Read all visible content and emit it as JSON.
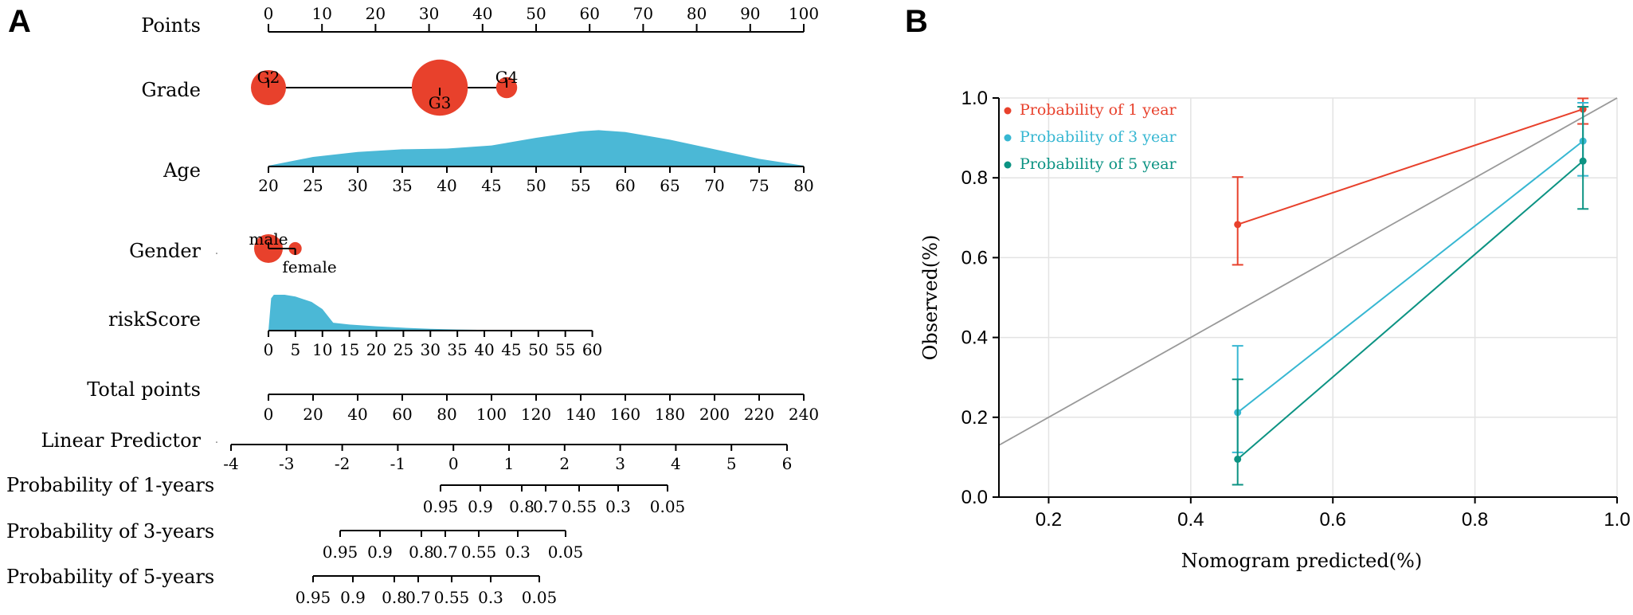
{
  "panels": {
    "a_label": "A",
    "b_label": "B"
  },
  "chart_data": [
    {
      "type": "nomogram",
      "title": "",
      "rows": [
        {
          "label": "Points",
          "kind": "axis",
          "min": 0,
          "max": 100,
          "ticks": [
            "0",
            "10",
            "20",
            "30",
            "40",
            "50",
            "60",
            "70",
            "80",
            "90",
            "100"
          ]
        },
        {
          "label": "Grade",
          "kind": "categorical",
          "categories": [
            {
              "name": "G2",
              "points": 0,
              "size": 1.0
            },
            {
              "name": "G3",
              "points": 32,
              "size": 1.6
            },
            {
              "name": "G4",
              "points": 44.5,
              "size": 0.6
            }
          ]
        },
        {
          "label": "Age",
          "kind": "continuous",
          "min": 20,
          "max": 80,
          "ticks": [
            "20",
            "25",
            "30",
            "35",
            "40",
            "45",
            "50",
            "55",
            "60",
            "65",
            "70",
            "75",
            "80"
          ],
          "density_x": [
            20,
            25,
            30,
            35,
            40,
            45,
            50,
            55,
            57,
            60,
            65,
            70,
            75,
            80
          ],
          "density_y": [
            0.02,
            0.25,
            0.38,
            0.45,
            0.47,
            0.55,
            0.75,
            0.92,
            0.95,
            0.9,
            0.7,
            0.45,
            0.2,
            0.02
          ]
        },
        {
          "label": "Gender",
          "kind": "categorical",
          "categories": [
            {
              "name": "male",
              "points": 0,
              "size": 1.0
            },
            {
              "name": "female",
              "points": 5,
              "size": 0.45
            }
          ]
        },
        {
          "label": "riskScore",
          "kind": "continuous",
          "min": 0,
          "max": 60,
          "ticks": [
            "0",
            "5",
            "10",
            "15",
            "20",
            "25",
            "30",
            "35",
            "40",
            "45",
            "50",
            "55",
            "60"
          ],
          "density_x": [
            0,
            0.5,
            1,
            3,
            5,
            8,
            10,
            12,
            15,
            20,
            25,
            30,
            35,
            40,
            45,
            50,
            55,
            60
          ],
          "density_y": [
            0,
            0.9,
            1.0,
            1.0,
            0.95,
            0.8,
            0.6,
            0.22,
            0.17,
            0.12,
            0.08,
            0.05,
            0.03,
            0.02,
            0.015,
            0.01,
            0.005,
            0
          ]
        },
        {
          "label": "Total points",
          "kind": "axis",
          "min": 0,
          "max": 240,
          "ticks": [
            "0",
            "20",
            "40",
            "60",
            "80",
            "100",
            "120",
            "140",
            "160",
            "180",
            "200",
            "220",
            "240"
          ]
        },
        {
          "label": "Linear Predictor",
          "kind": "axis",
          "min": -4,
          "max": 6,
          "ticks": [
            "-4",
            "-3",
            "-2",
            "-1",
            "0",
            "1",
            "2",
            "3",
            "4",
            "5",
            "6"
          ]
        },
        {
          "label": "Probability of 1-years",
          "kind": "probability",
          "ticks": [
            "0.95",
            "0.9",
            "0.8",
            "0.7",
            "0.55",
            "0.3",
            "0.05"
          ]
        },
        {
          "label": "Probability of 3-years",
          "kind": "probability",
          "ticks": [
            "0.95",
            "0.9",
            "0.8",
            "0.7",
            "0.55",
            "0.3",
            "0.05"
          ]
        },
        {
          "label": "Probability of 5-years",
          "kind": "probability",
          "ticks": [
            "0.95",
            "0.9",
            "0.8",
            "0.7",
            "0.55",
            "0.3",
            "0.05"
          ]
        }
      ]
    },
    {
      "type": "line",
      "title": "",
      "xlabel": "Nomogram predicted(%)",
      "ylabel": "Observed(%)",
      "xlim": [
        0.13,
        1.0
      ],
      "ylim": [
        0.0,
        1.0
      ],
      "xticks": [
        0.2,
        0.4,
        0.6,
        0.8,
        1.0
      ],
      "yticks": [
        0.0,
        0.2,
        0.4,
        0.6,
        0.8,
        1.0
      ],
      "grid": true,
      "legend": "top-left",
      "diagonal": true,
      "series": [
        {
          "name": "Probability of 1 year",
          "color": "#e8412c",
          "x": [
            0.466,
            0.952
          ],
          "y": [
            0.683,
            0.972
          ],
          "lower": [
            0.582,
            0.935
          ],
          "upper": [
            0.802,
            0.999
          ]
        },
        {
          "name": "Probability of 3 year",
          "color": "#37b7d2",
          "x": [
            0.466,
            0.952
          ],
          "y": [
            0.212,
            0.892
          ],
          "lower": [
            0.112,
            0.805
          ],
          "upper": [
            0.379,
            0.988
          ]
        },
        {
          "name": "Probability of 5 year",
          "color": "#0c9383",
          "x": [
            0.466,
            0.952
          ],
          "y": [
            0.095,
            0.842
          ],
          "lower": [
            0.031,
            0.722
          ],
          "upper": [
            0.295,
            0.978
          ]
        }
      ]
    }
  ]
}
